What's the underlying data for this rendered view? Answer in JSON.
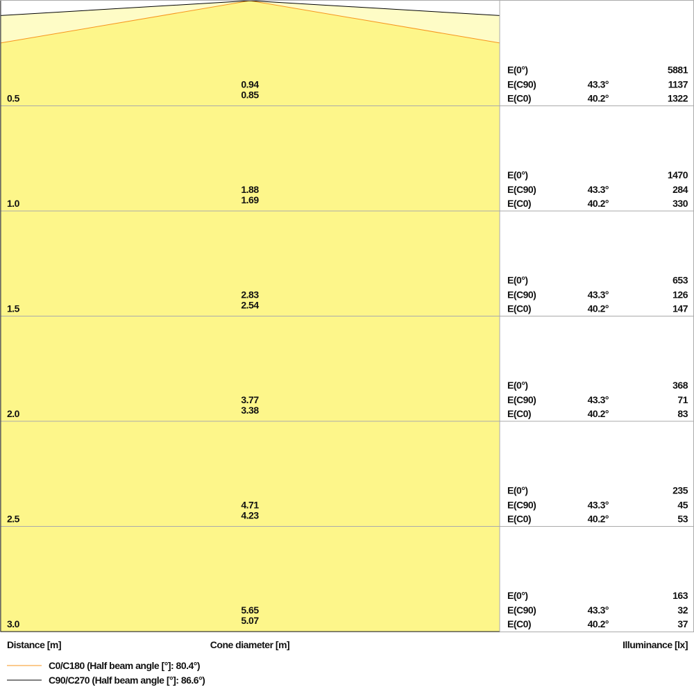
{
  "chart_data": {
    "type": "cone",
    "xlabel": "Cone diameter [m]",
    "ylabel": "Distance [m]",
    "right_label": "Illuminance [lx]",
    "colors": {
      "c0": "#f7941d",
      "c90": "#000000",
      "fill_inner": "#fdf68a",
      "fill_outer": "#fefcc6",
      "grid": "#aaaaaa"
    },
    "series": [
      {
        "name": "C0/C180 (Half beam angle [°]: 80.4°)",
        "half_beam_angle": 80.4,
        "color": "#f7941d"
      },
      {
        "name": "C90/C270 (Half beam angle [°]: 86.6°)",
        "half_beam_angle": 86.6,
        "color": "#000000"
      }
    ],
    "labels": {
      "e0": "E(0°)",
      "ec90": "E(C90)",
      "ec0": "E(C0)",
      "angle_c90": "43.3°",
      "angle_c0": "40.2°"
    },
    "rows": [
      {
        "distance": "0.5",
        "d_c90": "0.94",
        "d_c0": "0.85",
        "e0": "5881",
        "ec90": "1137",
        "ec0": "1322"
      },
      {
        "distance": "1.0",
        "d_c90": "1.88",
        "d_c0": "1.69",
        "e0": "1470",
        "ec90": "284",
        "ec0": "330"
      },
      {
        "distance": "1.5",
        "d_c90": "2.83",
        "d_c0": "2.54",
        "e0": "653",
        "ec90": "126",
        "ec0": "147"
      },
      {
        "distance": "2.0",
        "d_c90": "3.77",
        "d_c0": "3.38",
        "e0": "368",
        "ec90": "71",
        "ec0": "83"
      },
      {
        "distance": "2.5",
        "d_c90": "4.71",
        "d_c0": "4.23",
        "e0": "235",
        "ec90": "45",
        "ec0": "53"
      },
      {
        "distance": "3.0",
        "d_c90": "5.65",
        "d_c0": "5.07",
        "e0": "163",
        "ec90": "32",
        "ec0": "37"
      }
    ]
  }
}
